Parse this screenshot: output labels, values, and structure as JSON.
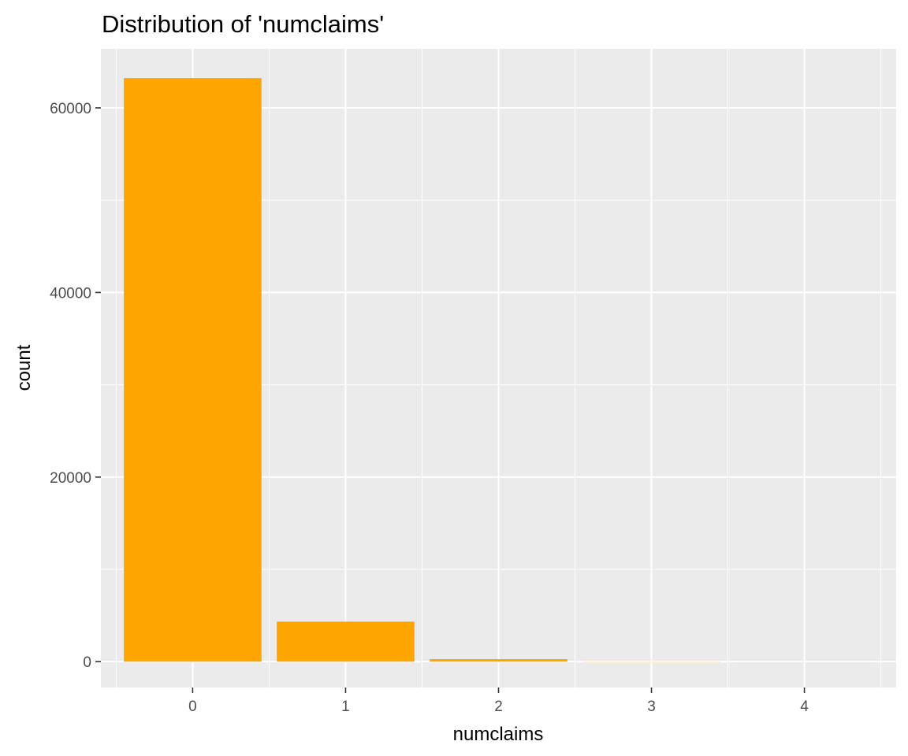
{
  "chart_data": {
    "type": "bar",
    "title": "Distribution of 'numclaims'",
    "xlabel": "numclaims",
    "ylabel": "count",
    "categories": [
      "0",
      "1",
      "2",
      "3",
      "4"
    ],
    "values": [
      63232,
      4333,
      271,
      18,
      2
    ],
    "ylim": [
      -2800,
      66400
    ],
    "yticks": [
      0,
      20000,
      40000,
      60000
    ],
    "ytick_labels": [
      "0",
      "20000",
      "40000",
      "60000"
    ],
    "grid": true,
    "legend": "none",
    "colors": {
      "bar": "#FFA500",
      "panel_background": "#EBEBEB",
      "grid": "#FFFFFF",
      "tick_text": "#4D4D4D",
      "axis_tick": "#333333"
    }
  }
}
